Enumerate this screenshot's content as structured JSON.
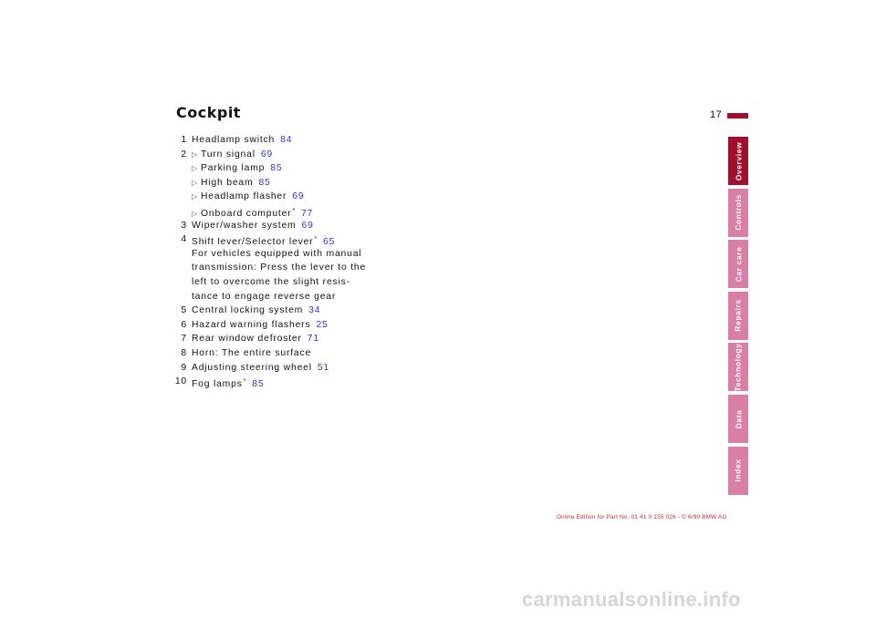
{
  "page": {
    "title": "Cockpit",
    "number": "17",
    "accent_color": "#a0102e",
    "tab_color": "#d97fa5",
    "link_color": "#2b35d8"
  },
  "items": [
    {
      "num": "1",
      "text": "Headlamp switch",
      "ref": "84"
    },
    {
      "num": "2",
      "bullet": true,
      "text": "Turn signal",
      "ref": "69"
    },
    {
      "bullet": true,
      "text": "Parking lamp",
      "ref": "85"
    },
    {
      "bullet": true,
      "text": "High beam",
      "ref": "85"
    },
    {
      "bullet": true,
      "text": "Headlamp flasher",
      "ref": "69"
    },
    {
      "bullet": true,
      "text": "Onboard computer",
      "star": "*",
      "ref": "77"
    },
    {
      "num": "3",
      "text": "Wiper/washer system",
      "ref": "69"
    },
    {
      "num": "4",
      "text": "Shift lever/Selector lever",
      "star": "*",
      "ref": "65"
    },
    {
      "text": "For vehicles equipped with manual"
    },
    {
      "text": "transmission: Press the lever to the"
    },
    {
      "text": "left to overcome the slight resis-"
    },
    {
      "text": "tance to engage reverse gear"
    },
    {
      "num": "5",
      "text": "Central locking system",
      "ref": "34"
    },
    {
      "num": "6",
      "text": "Hazard warning flashers",
      "ref": "25"
    },
    {
      "num": "7",
      "text": "Rear window defroster",
      "ref": "71"
    },
    {
      "num": "8",
      "text": "Horn: The entire surface"
    },
    {
      "num": "9",
      "text": "Adjusting steering wheel",
      "ref": "51"
    },
    {
      "num": "10",
      "text": "Fog lamps",
      "star": "*",
      "ref": "85"
    }
  ],
  "tabs": [
    {
      "label": "Overview",
      "active": true
    },
    {
      "label": "Controls"
    },
    {
      "label": "Car care"
    },
    {
      "label": "Repairs"
    },
    {
      "label": "Technology"
    },
    {
      "label": "Data"
    },
    {
      "label": "Index"
    }
  ],
  "footer": "Online Edition for Part No. 01 41 0 155 026 - © 6/99 BMW AG",
  "watermark": "carmanualsonline.info"
}
